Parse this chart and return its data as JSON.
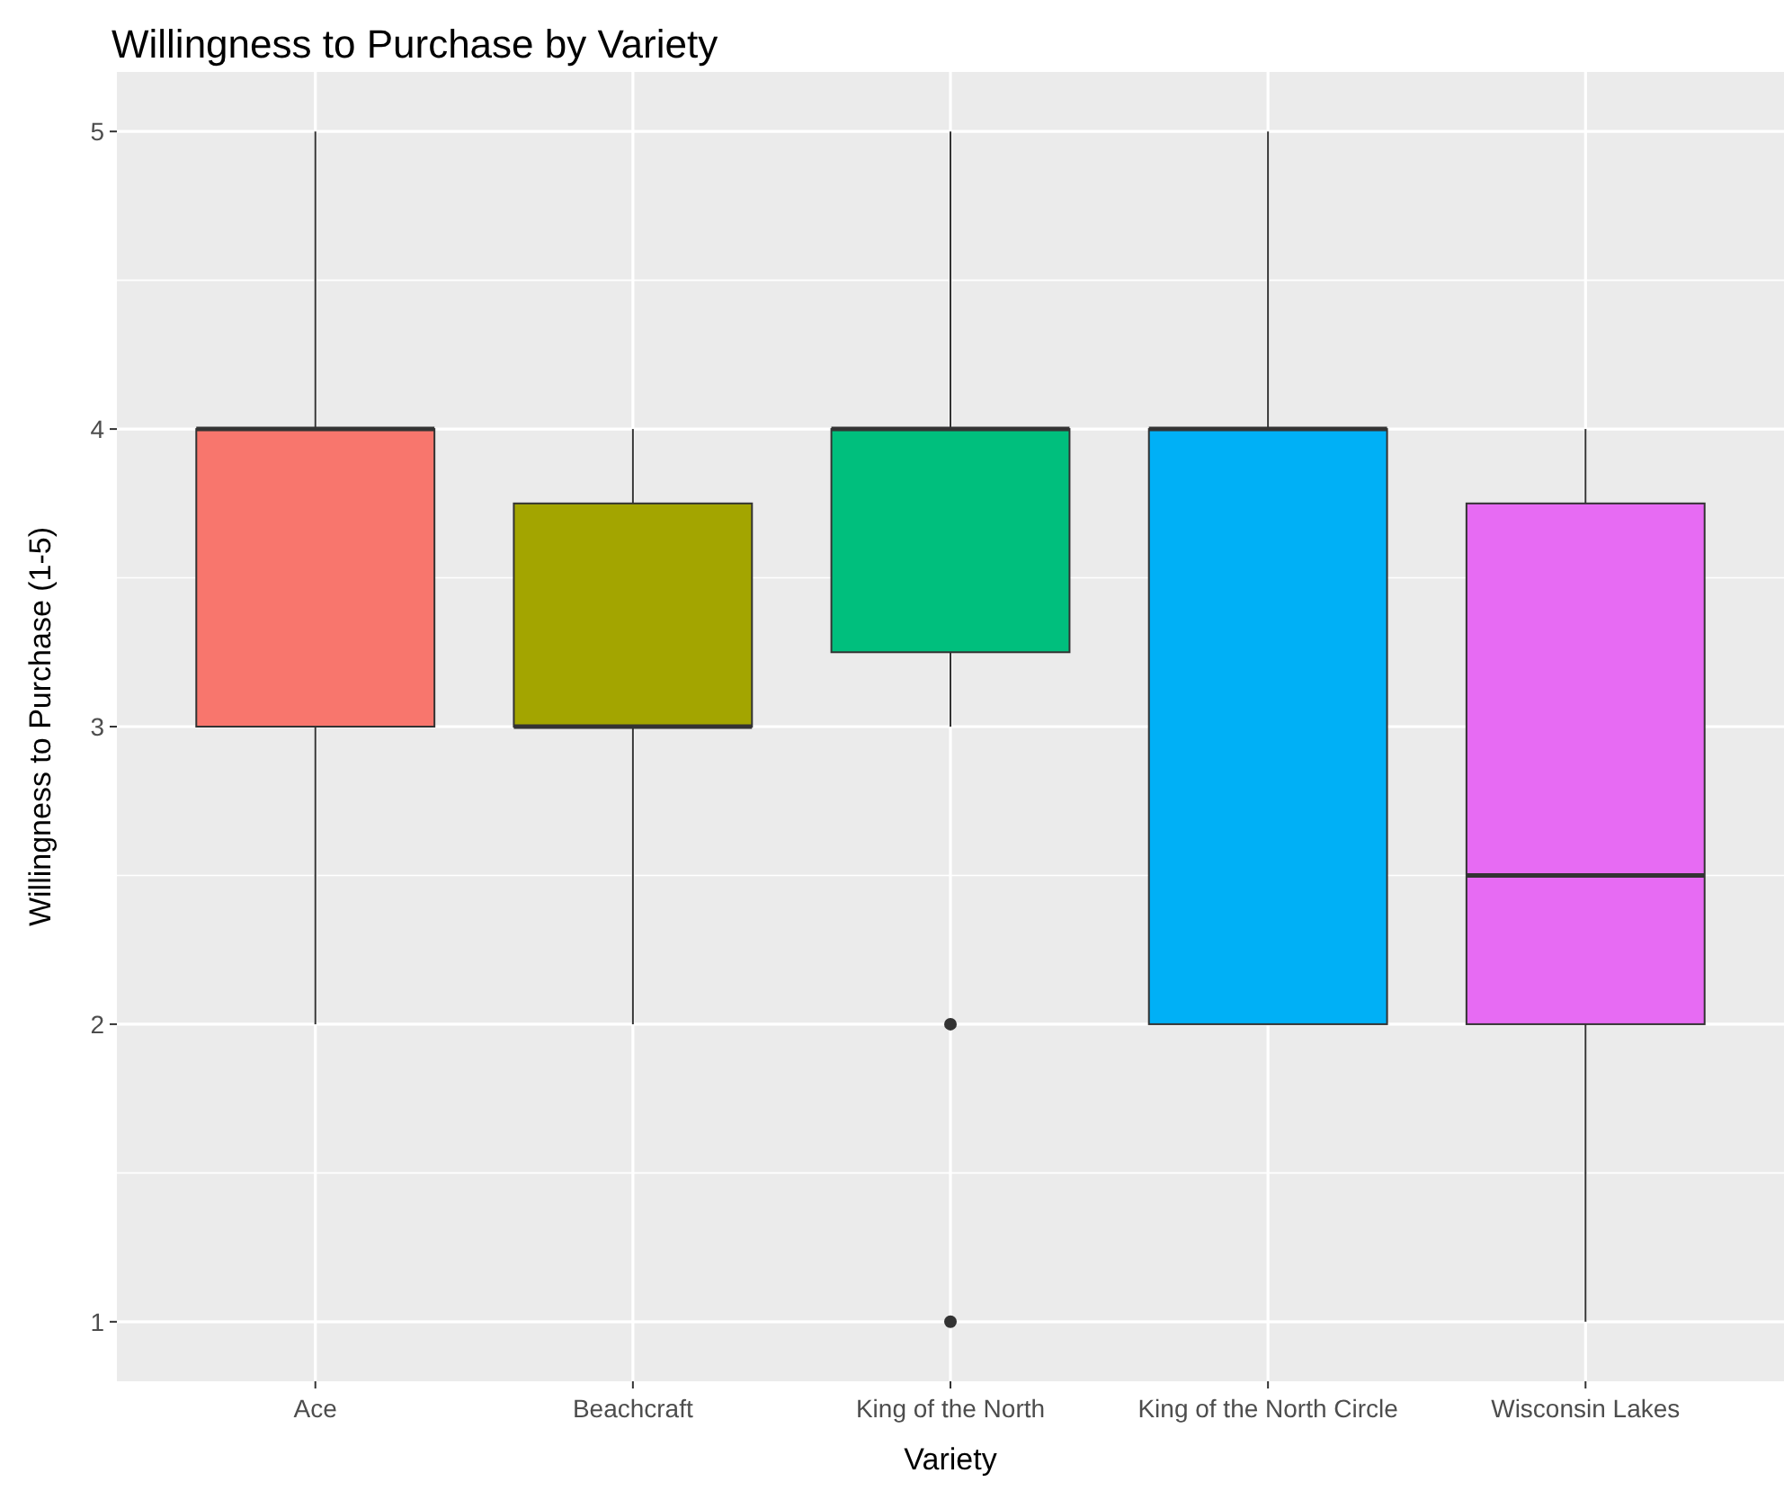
{
  "chart_data": {
    "type": "box",
    "title": "Willingness to Purchase by Variety",
    "xlabel": "Variety",
    "ylabel": "Willingness to Purchase (1-5)",
    "categories": [
      "Ace",
      "Beachcraft",
      "King of the North",
      "King of the North Circle",
      "Wisconsin Lakes"
    ],
    "boxes": [
      {
        "low": 2,
        "q1": 3,
        "median": 4,
        "q3": 4,
        "high": 5
      },
      {
        "low": 2,
        "q1": 3,
        "median": 3,
        "q3": 3.75,
        "high": 4
      },
      {
        "low": 3,
        "q1": 3.25,
        "median": 4,
        "q3": 4,
        "high": 5,
        "outliers": [
          2,
          1
        ]
      },
      {
        "low": 2,
        "q1": 2,
        "median": 4,
        "q3": 4,
        "high": 5
      },
      {
        "low": 1,
        "q1": 2,
        "median": 2.5,
        "q3": 3.75,
        "high": 4
      }
    ],
    "colors": [
      "#f8766d",
      "#a3a500",
      "#00bf7d",
      "#00b0f6",
      "#e76bf3"
    ],
    "ylim": [
      0.8,
      5.2
    ],
    "yticks": [
      1,
      2,
      3,
      4,
      5
    ],
    "grid": true
  }
}
